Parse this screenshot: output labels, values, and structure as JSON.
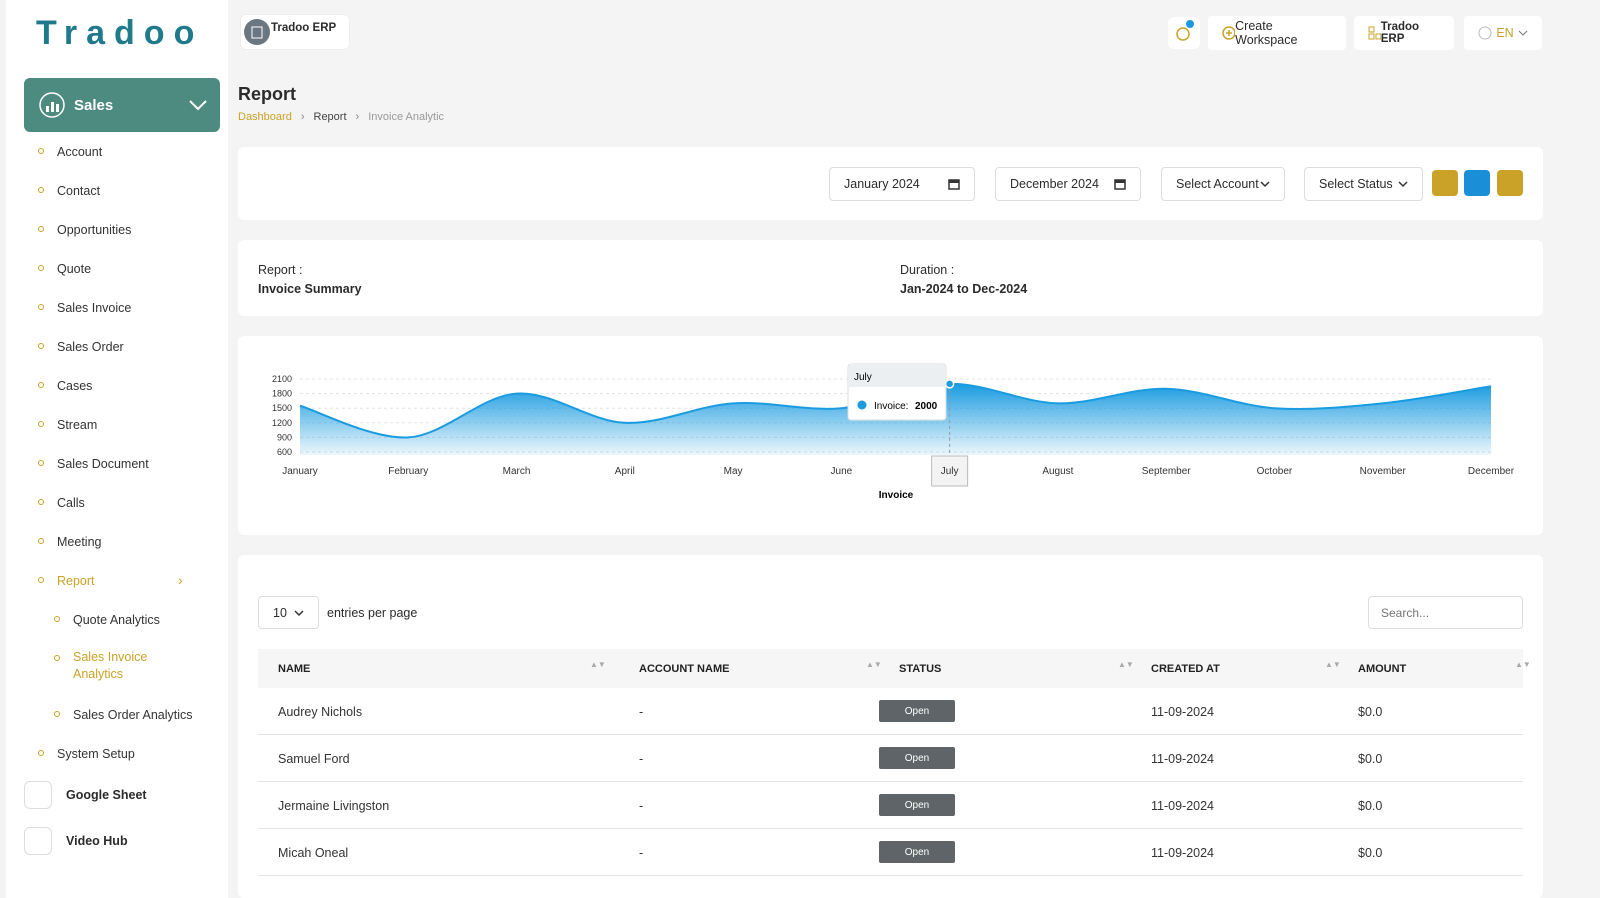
{
  "logo": "Tradoo",
  "topbar": {
    "workspace": "Tradoo ERP",
    "create": "Create Workspace",
    "org": "Tradoo ERP",
    "language": "EN"
  },
  "sidebar": {
    "section": "Sales",
    "items": [
      "Account",
      "Contact",
      "Opportunities",
      "Quote",
      "Sales Invoice",
      "Sales Order",
      "Cases",
      "Stream",
      "Sales Document",
      "Calls",
      "Meeting"
    ],
    "report": "Report",
    "report_items": [
      "Quote Analytics",
      "Sales Invoice Analytics",
      "Sales Order Analytics"
    ],
    "after": [
      "System Setup"
    ],
    "apps": [
      "Google Sheet",
      "Video Hub"
    ]
  },
  "header": {
    "title": "Report",
    "breadcrumb": [
      "Dashboard",
      "Report",
      "Invoice Analytic"
    ]
  },
  "filters": {
    "from": "January 2024",
    "to": "December 2024",
    "account": "Select Account",
    "status": "Select Status"
  },
  "summary": {
    "report_label": "Report :",
    "report_value": "Invoice Summary",
    "duration_label": "Duration :",
    "duration_value": "Jan-2024 to Dec-2024"
  },
  "chart_data": {
    "type": "area",
    "categories": [
      "January",
      "February",
      "March",
      "April",
      "May",
      "June",
      "July",
      "August",
      "September",
      "October",
      "November",
      "December"
    ],
    "series": [
      {
        "name": "Invoice",
        "color": "#1a9be0",
        "values": [
          1550,
          900,
          1800,
          1200,
          1600,
          1500,
          2000,
          1600,
          1900,
          1500,
          1600,
          1950
        ]
      }
    ],
    "ylim": [
      600,
      2100
    ],
    "yticks": [
      600,
      900,
      1200,
      1500,
      1800,
      2100
    ],
    "grid": true,
    "x_label": "Invoice",
    "tooltip_label": "Invoice:"
  },
  "table": {
    "page_size": "10",
    "entries_text": "entries per page",
    "search": "Search...",
    "columns": [
      "NAME",
      "ACCOUNT NAME",
      "STATUS",
      "CREATED AT",
      "AMOUNT"
    ],
    "rows": [
      [
        "Audrey Nichols",
        "-",
        "Open",
        "11-09-2024",
        "$0.0"
      ],
      [
        "Samuel Ford",
        "-",
        "Open",
        "11-09-2024",
        "$0.0"
      ],
      [
        "Jermaine Livingston",
        "-",
        "Open",
        "11-09-2024",
        "$0.0"
      ],
      [
        "Micah Oneal",
        "-",
        "Open",
        "11-09-2024",
        "$0.0"
      ]
    ]
  }
}
